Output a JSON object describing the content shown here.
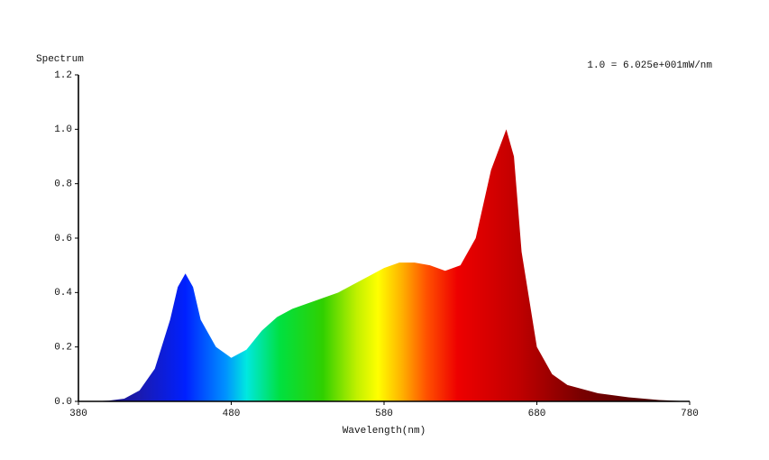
{
  "chart_data": {
    "type": "area",
    "y_label": "Spectrum",
    "x_label": "Wavelength(nm)",
    "annotation": "1.0 = 6.025e+001mW/nm",
    "x": [
      380,
      390,
      400,
      410,
      420,
      430,
      440,
      445,
      450,
      455,
      460,
      470,
      480,
      490,
      500,
      510,
      520,
      530,
      540,
      550,
      560,
      570,
      580,
      590,
      600,
      610,
      620,
      630,
      640,
      650,
      660,
      665,
      670,
      680,
      690,
      700,
      720,
      740,
      760,
      780
    ],
    "values": [
      0,
      0,
      0.003,
      0.01,
      0.04,
      0.12,
      0.3,
      0.42,
      0.47,
      0.42,
      0.3,
      0.2,
      0.16,
      0.19,
      0.26,
      0.31,
      0.34,
      0.36,
      0.38,
      0.4,
      0.43,
      0.46,
      0.49,
      0.51,
      0.51,
      0.5,
      0.48,
      0.5,
      0.6,
      0.85,
      1.0,
      0.9,
      0.55,
      0.2,
      0.1,
      0.06,
      0.03,
      0.015,
      0.005,
      0
    ],
    "xlim": [
      380,
      780
    ],
    "xticks": [
      380,
      480,
      580,
      680,
      780
    ],
    "ylim": [
      0,
      1.2
    ],
    "yticks": [
      {
        "value": 0,
        "label": "0.0"
      },
      {
        "value": 0.2,
        "label": "0.2"
      },
      {
        "value": 0.4,
        "label": "0.4"
      },
      {
        "value": 0.6,
        "label": "0.6"
      },
      {
        "value": 0.8,
        "label": "0.8"
      },
      {
        "value": 1.0,
        "label": "1.0"
      },
      {
        "value": 1.2,
        "label": "1.2"
      }
    ]
  }
}
